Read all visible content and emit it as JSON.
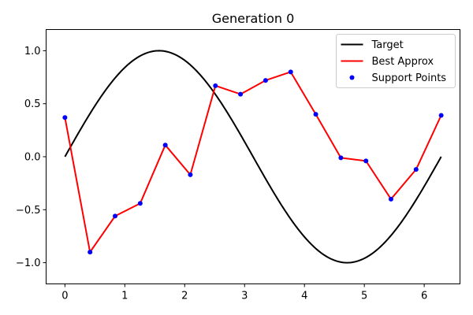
{
  "chart_data": {
    "type": "line",
    "title": "Generation 0",
    "xlabel": "",
    "ylabel": "",
    "xlim": [
      -0.3142,
      6.5973
    ],
    "ylim": [
      -1.2,
      1.2
    ],
    "x_ticks": [
      0,
      1,
      2,
      3,
      4,
      5,
      6
    ],
    "y_ticks": [
      -1.0,
      -0.5,
      0.0,
      0.5,
      1.0
    ],
    "x_tick_labels": [
      "0",
      "1",
      "2",
      "3",
      "4",
      "5",
      "6"
    ],
    "y_tick_labels": [
      "−1.0",
      "−0.5",
      "0.0",
      "0.5",
      "1.0"
    ],
    "grid": false,
    "legend_position": "top-right",
    "series": [
      {
        "name": "Target",
        "kind": "line",
        "color": "#000000",
        "function": "sin",
        "x_range": [
          0,
          6.2832
        ]
      },
      {
        "name": "Best Approx",
        "kind": "line",
        "color": "#ff0000",
        "x": [
          0,
          0.419,
          0.838,
          1.257,
          1.676,
          2.094,
          2.513,
          2.932,
          3.351,
          3.77,
          4.189,
          4.608,
          5.027,
          5.445,
          5.864,
          6.283
        ],
        "y": [
          0.37,
          -0.9,
          -0.56,
          -0.44,
          0.11,
          -0.17,
          0.67,
          0.59,
          0.72,
          0.8,
          0.4,
          -0.01,
          -0.04,
          -0.4,
          -0.12,
          0.39
        ]
      },
      {
        "name": "Support Points",
        "kind": "scatter",
        "color": "#0000ff",
        "x": [
          0,
          0.419,
          0.838,
          1.257,
          1.676,
          2.094,
          2.513,
          2.932,
          3.351,
          3.77,
          4.189,
          4.608,
          5.027,
          5.445,
          5.864,
          6.283
        ],
        "y": [
          0.37,
          -0.9,
          -0.56,
          -0.44,
          0.11,
          -0.17,
          0.67,
          0.59,
          0.72,
          0.8,
          0.4,
          -0.01,
          -0.04,
          -0.4,
          -0.12,
          0.39
        ]
      }
    ]
  }
}
